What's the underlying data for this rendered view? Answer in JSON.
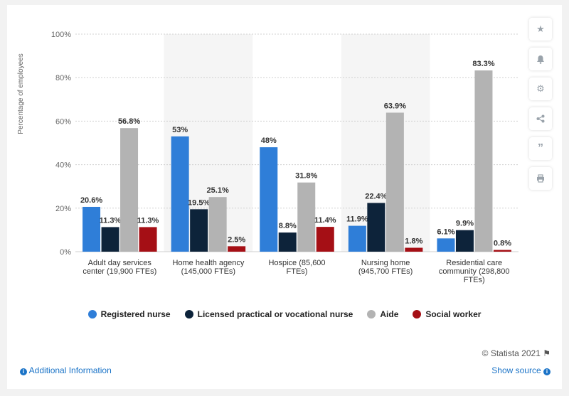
{
  "chart_data": {
    "type": "bar",
    "ylabel": "Percentage of employees",
    "ylim": [
      0,
      100
    ],
    "y_ticks": [
      "0%",
      "20%",
      "40%",
      "60%",
      "80%",
      "100%"
    ],
    "grid": true,
    "legend_position": "bottom",
    "categories": [
      [
        "Adult day services",
        "center (19,900 FTEs)"
      ],
      [
        "Home health agency",
        "(145,000 FTEs)"
      ],
      [
        "Hospice (85,600",
        "FTEs)"
      ],
      [
        "Nursing home",
        "(945,700 FTEs)"
      ],
      [
        "Residential care",
        "community (298,800",
        "FTEs)"
      ]
    ],
    "series": [
      {
        "name": "Registered nurse",
        "color": "#2f7ed8",
        "values": [
          20.6,
          53,
          48,
          11.9,
          6.1
        ],
        "labels": [
          "20.6%",
          "53%",
          "48%",
          "11.9%",
          "6.1%"
        ]
      },
      {
        "name": "Licensed practical or vocational nurse",
        "color": "#0d233a",
        "values": [
          11.3,
          19.5,
          8.8,
          22.4,
          9.9
        ],
        "labels": [
          "11.3%",
          "19.5%",
          "8.8%",
          "22.4%",
          "9.9%"
        ]
      },
      {
        "name": "Aide",
        "color": "#b3b3b3",
        "values": [
          56.8,
          25.1,
          31.8,
          63.9,
          83.3
        ],
        "labels": [
          "56.8%",
          "25.1%",
          "31.8%",
          "63.9%",
          "83.3%"
        ]
      },
      {
        "name": "Social worker",
        "color": "#a50f15",
        "values": [
          11.3,
          2.5,
          11.4,
          1.8,
          0.8
        ],
        "labels": [
          "11.3%",
          "2.5%",
          "11.4%",
          "1.8%",
          "0.8%"
        ]
      }
    ]
  },
  "sidebar": {
    "icons": [
      "star-icon",
      "bell-icon",
      "gear-icon",
      "share-icon",
      "quote-icon",
      "print-icon"
    ]
  },
  "footer": {
    "credit": "© Statista 2021",
    "additional_info": "Additional Information",
    "show_source": "Show source"
  }
}
